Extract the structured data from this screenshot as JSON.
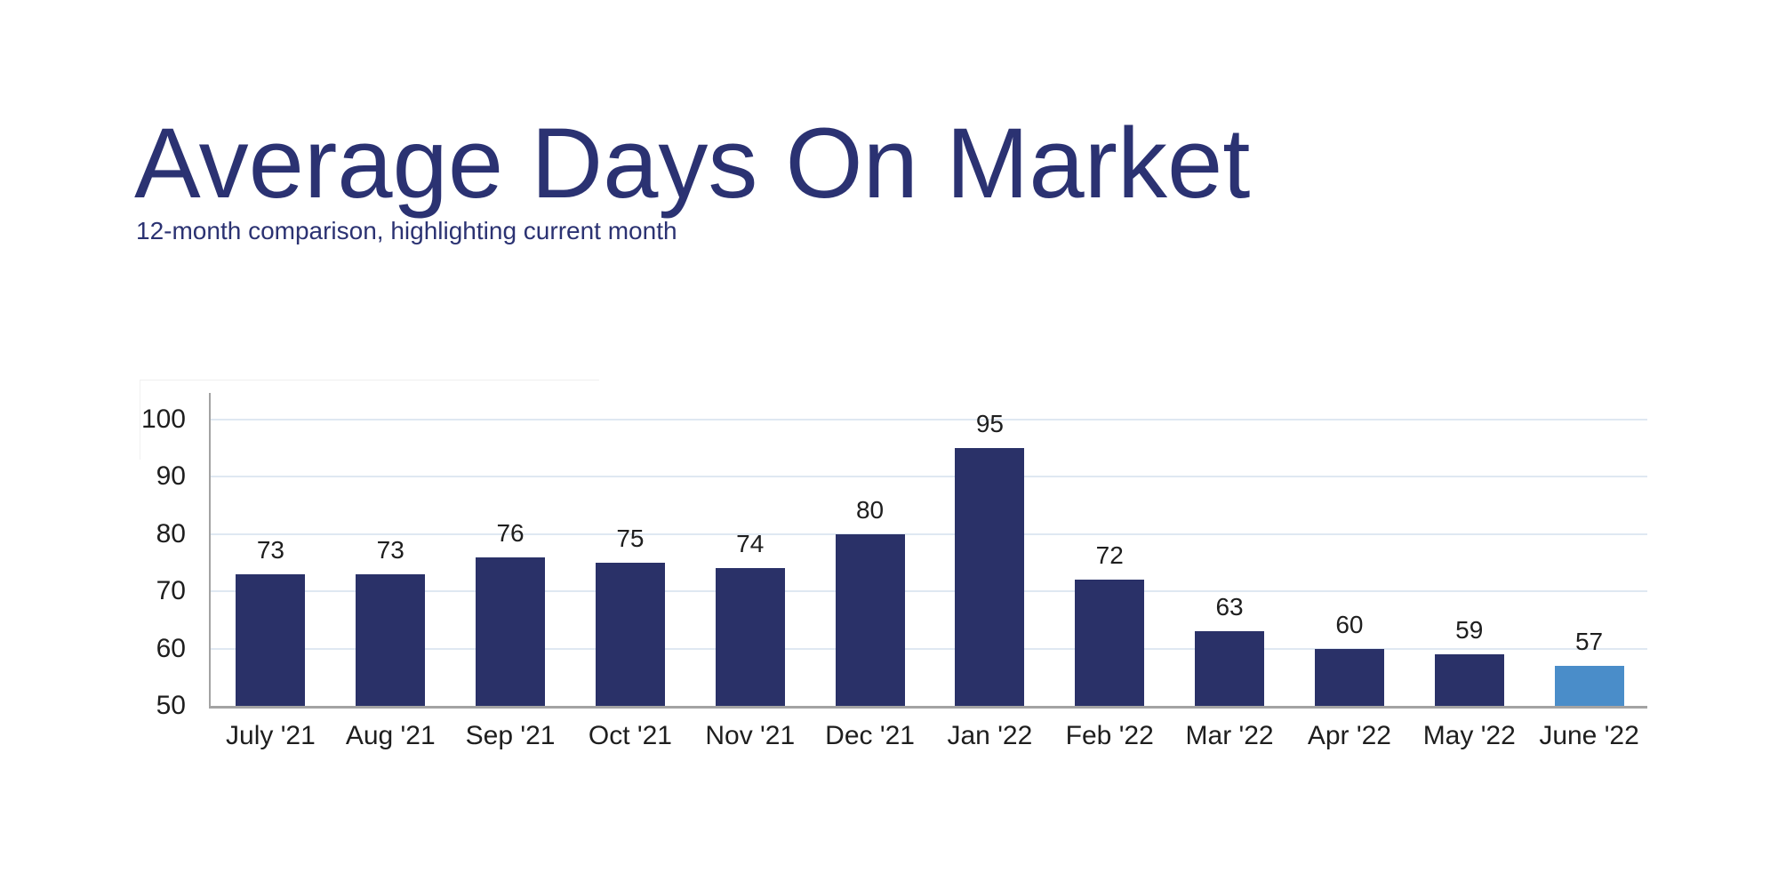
{
  "page": {
    "title": "Average Days On Market",
    "subtitle": "12-month comparison, highlighting current month"
  },
  "chart_data": {
    "type": "bar",
    "title": "Average Days On Market",
    "subtitle": "12-month comparison, highlighting current month",
    "categories": [
      "July '21",
      "Aug '21",
      "Sep '21",
      "Oct '21",
      "Nov '21",
      "Dec '21",
      "Jan '22",
      "Feb '22",
      "Mar '22",
      "Apr '22",
      "May '22",
      "June '22"
    ],
    "values": [
      73,
      73,
      76,
      75,
      74,
      80,
      95,
      72,
      63,
      60,
      59,
      57
    ],
    "highlight_index": 11,
    "xlabel": "",
    "ylabel": "",
    "ylim": [
      50,
      105
    ],
    "yticks": [
      50,
      60,
      70,
      80,
      90,
      100
    ],
    "grid": true,
    "legend": "none",
    "colors": {
      "bar": "#2a3168",
      "highlight_bar": "#4a8dc9",
      "gridline": "#dfe8f2",
      "axis": "#a3a3a3",
      "heading_text": "#2b3272",
      "label_text": "#1e1e1e"
    }
  }
}
